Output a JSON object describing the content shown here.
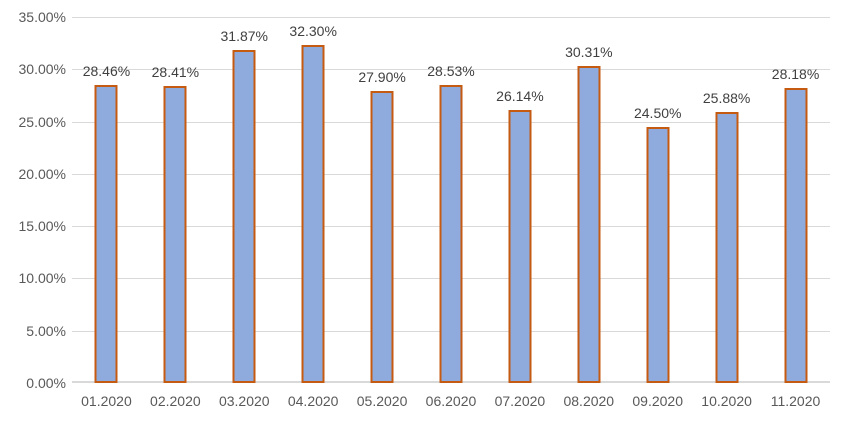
{
  "chart_data": {
    "type": "bar",
    "title": "",
    "xlabel": "",
    "ylabel": "",
    "categories": [
      "01.2020",
      "02.2020",
      "03.2020",
      "04.2020",
      "05.2020",
      "06.2020",
      "07.2020",
      "08.2020",
      "09.2020",
      "10.2020",
      "11.2020"
    ],
    "values": [
      28.46,
      28.41,
      31.87,
      32.3,
      27.9,
      28.53,
      26.14,
      30.31,
      24.5,
      25.88,
      28.18
    ],
    "data_labels": [
      "28.46%",
      "28.41%",
      "31.87%",
      "32.30%",
      "27.90%",
      "28.53%",
      "26.14%",
      "30.31%",
      "24.50%",
      "25.88%",
      "28.18%"
    ],
    "y_ticks": [
      "0.00%",
      "5.00%",
      "10.00%",
      "15.00%",
      "20.00%",
      "25.00%",
      "30.00%",
      "35.00%"
    ],
    "y_tick_values": [
      0,
      5,
      10,
      15,
      20,
      25,
      30,
      35
    ],
    "ylim": [
      0,
      35
    ],
    "grid": true,
    "legend": "none",
    "colors": {
      "bar_fill": "#8FAADC",
      "bar_border": "#C55A11",
      "gridline": "#D9D9D9",
      "axis_line": "#D9D9D9",
      "data_label_text": "#404040",
      "axis_label_text": "#595959",
      "background": "#FFFFFF"
    }
  }
}
